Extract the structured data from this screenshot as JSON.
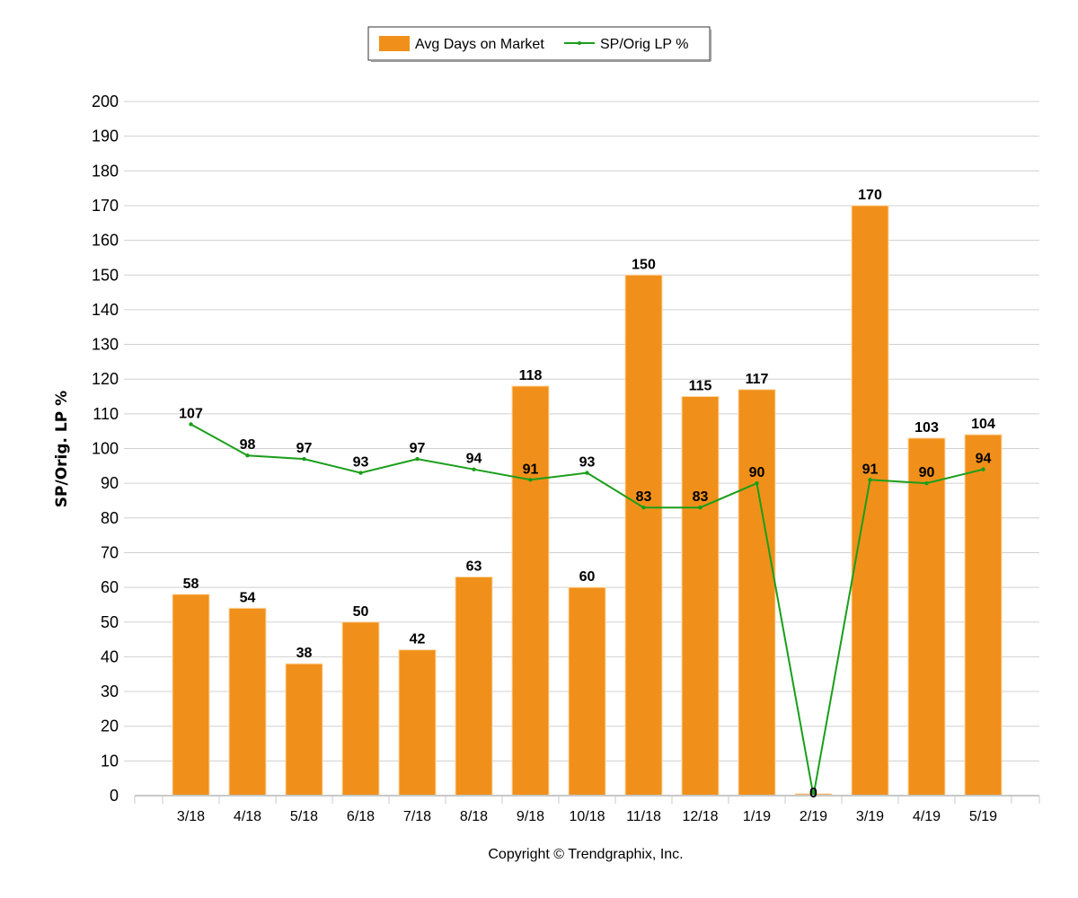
{
  "chart_data": {
    "type": "bar",
    "categories": [
      "3/18",
      "4/18",
      "5/18",
      "6/18",
      "7/18",
      "8/18",
      "9/18",
      "10/18",
      "11/18",
      "12/18",
      "1/19",
      "2/19",
      "3/19",
      "4/19",
      "5/19"
    ],
    "series": [
      {
        "name": "Avg Days on Market",
        "type": "bar",
        "color": "#F0901A",
        "values": [
          58,
          54,
          38,
          50,
          42,
          63,
          118,
          60,
          150,
          115,
          117,
          0,
          170,
          103,
          104
        ]
      },
      {
        "name": "SP/Orig LP %",
        "type": "line",
        "color": "#1A9E1A",
        "values": [
          107,
          98,
          97,
          93,
          97,
          94,
          91,
          93,
          83,
          83,
          90,
          0,
          91,
          90,
          94
        ]
      }
    ],
    "ylabel": "SP/Orig. LP %",
    "ylim": [
      0,
      200
    ],
    "yticks": [
      0,
      10,
      20,
      30,
      40,
      50,
      60,
      70,
      80,
      90,
      100,
      110,
      120,
      130,
      140,
      150,
      160,
      170,
      180,
      190,
      200
    ],
    "grid": true,
    "legend_position": "top-center",
    "footer": "Copyright © Trendgraphix, Inc."
  }
}
